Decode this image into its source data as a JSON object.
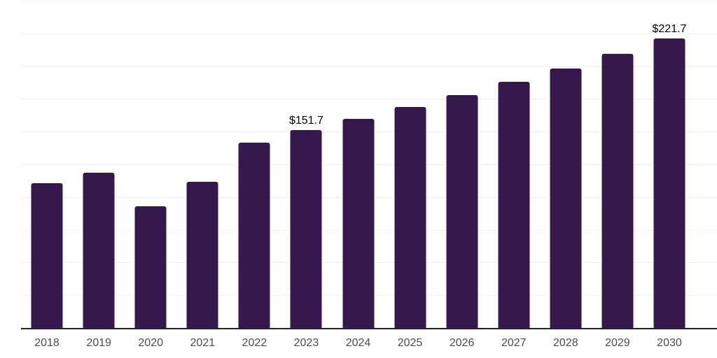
{
  "chart_data": {
    "type": "bar",
    "categories": [
      "2018",
      "2019",
      "2020",
      "2021",
      "2022",
      "2023",
      "2024",
      "2025",
      "2026",
      "2027",
      "2028",
      "2029",
      "2030"
    ],
    "values": [
      111.3,
      119.2,
      93.7,
      112.0,
      142.2,
      151.7,
      160.1,
      169.1,
      178.6,
      188.5,
      198.9,
      210.0,
      221.7
    ],
    "data_labels": {
      "2023": "$151.7",
      "2030": "$221.7"
    },
    "title": "",
    "xlabel": "",
    "ylabel": "",
    "ylim": [
      0,
      250
    ],
    "gridline_interval": 25,
    "grid": "horizontal",
    "y_axis_labels_visible": false,
    "legend": "none",
    "colors": {
      "bar": "#35184c",
      "axis_line": "#222222",
      "gridline": "#f0f0f0",
      "x_label_text": "#4d4d4d",
      "value_label_text": "#000000",
      "background": "#ffffff"
    }
  }
}
